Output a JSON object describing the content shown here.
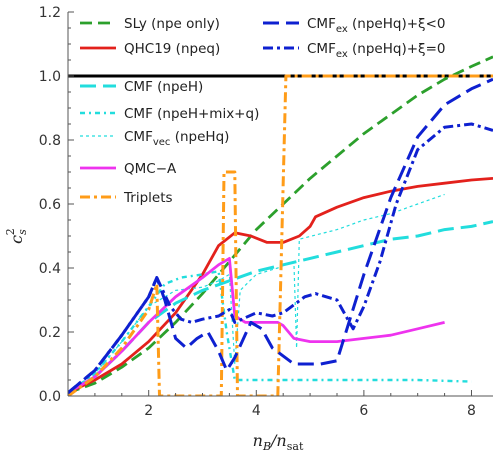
{
  "chart_data": {
    "type": "line",
    "xlabel": "n_B/n_sat",
    "ylabel": "c_s^2",
    "xlim": [
      0.5,
      8.4
    ],
    "ylim": [
      0.0,
      1.2
    ],
    "x_ticks": [
      "2",
      "4",
      "6",
      "8"
    ],
    "y_ticks": [
      "0.0",
      "0.2",
      "0.4",
      "0.6",
      "0.8",
      "1.0",
      "1.2"
    ],
    "reference_line": {
      "y": 1.0,
      "color": "#000000"
    },
    "legend_placement": "top-left, two columns",
    "series": [
      {
        "name": "SLy (npe only)",
        "color": "#2ca02c",
        "dash": "12,6",
        "width": 2.8,
        "points": [
          [
            0.5,
            0.01
          ],
          [
            1,
            0.04
          ],
          [
            1.5,
            0.09
          ],
          [
            2,
            0.15
          ],
          [
            2.5,
            0.23
          ],
          [
            3,
            0.32
          ],
          [
            3.5,
            0.42
          ],
          [
            4,
            0.52
          ],
          [
            4.5,
            0.6
          ],
          [
            5,
            0.68
          ],
          [
            5.5,
            0.75
          ],
          [
            6,
            0.82
          ],
          [
            6.5,
            0.88
          ],
          [
            7,
            0.94
          ],
          [
            7.5,
            0.99
          ],
          [
            8,
            1.03
          ],
          [
            8.4,
            1.06
          ]
        ]
      },
      {
        "name": "QHC19 (npeq)",
        "color": "#e3211c",
        "dash": "",
        "width": 2.8,
        "points": [
          [
            0.5,
            0.01
          ],
          [
            1,
            0.05
          ],
          [
            1.5,
            0.1
          ],
          [
            2,
            0.17
          ],
          [
            2.5,
            0.26
          ],
          [
            3,
            0.38
          ],
          [
            3.3,
            0.47
          ],
          [
            3.6,
            0.51
          ],
          [
            3.9,
            0.5
          ],
          [
            4.2,
            0.48
          ],
          [
            4.5,
            0.48
          ],
          [
            4.8,
            0.5
          ],
          [
            5,
            0.53
          ],
          [
            5.1,
            0.56
          ],
          [
            5.5,
            0.59
          ],
          [
            6,
            0.62
          ],
          [
            6.5,
            0.64
          ],
          [
            7,
            0.655
          ],
          [
            7.5,
            0.665
          ],
          [
            8,
            0.675
          ],
          [
            8.4,
            0.68
          ]
        ]
      },
      {
        "name": "CMF (npeH)",
        "color": "#22dddd",
        "dash": "16,7",
        "width": 3,
        "points": [
          [
            0.5,
            0.01
          ],
          [
            1,
            0.06
          ],
          [
            1.5,
            0.14
          ],
          [
            2,
            0.23
          ],
          [
            2.5,
            0.29
          ],
          [
            3,
            0.33
          ],
          [
            3.5,
            0.36
          ],
          [
            4,
            0.39
          ],
          [
            4.5,
            0.41
          ],
          [
            5,
            0.43
          ],
          [
            5.5,
            0.45
          ],
          [
            6,
            0.47
          ],
          [
            6.5,
            0.49
          ],
          [
            7,
            0.5
          ],
          [
            7.5,
            0.52
          ],
          [
            8,
            0.53
          ],
          [
            8.4,
            0.545
          ]
        ]
      },
      {
        "name": "CMF (npeH+mix+q)",
        "color": "#22dddd",
        "dash": "5,4,2,4",
        "width": 2.4,
        "points": [
          [
            0.5,
            0.01
          ],
          [
            1,
            0.07
          ],
          [
            1.5,
            0.17
          ],
          [
            2,
            0.28
          ],
          [
            2.3,
            0.35
          ],
          [
            2.6,
            0.37
          ],
          [
            3,
            0.38
          ],
          [
            3.3,
            0.39
          ],
          [
            3.45,
            0.2
          ],
          [
            3.6,
            0.05
          ],
          [
            4,
            0.05
          ],
          [
            5,
            0.05
          ],
          [
            6,
            0.05
          ],
          [
            7,
            0.05
          ],
          [
            8,
            0.045
          ]
        ]
      },
      {
        "name": "CMF_vec (npeHq)",
        "color": "#22dddd",
        "dash": "3,3",
        "width": 1.2,
        "points": [
          [
            0.5,
            0.01
          ],
          [
            1,
            0.07
          ],
          [
            1.5,
            0.17
          ],
          [
            2,
            0.28
          ],
          [
            2.5,
            0.33
          ],
          [
            3,
            0.34
          ],
          [
            3.3,
            0.36
          ],
          [
            3.5,
            0.38
          ],
          [
            3.6,
            0.1
          ],
          [
            3.7,
            0.33
          ],
          [
            4,
            0.38
          ],
          [
            4.4,
            0.4
          ],
          [
            4.5,
            0.41
          ],
          [
            4.7,
            0.42
          ],
          [
            4.75,
            0.15
          ],
          [
            4.8,
            0.49
          ],
          [
            5.5,
            0.52
          ],
          [
            6,
            0.55
          ],
          [
            6.5,
            0.57
          ],
          [
            7,
            0.6
          ],
          [
            7.5,
            0.63
          ]
        ]
      },
      {
        "name": "QMC-A",
        "color": "#ee33ee",
        "dash": "",
        "width": 2.8,
        "points": [
          [
            0.5,
            0.01
          ],
          [
            1,
            0.06
          ],
          [
            1.5,
            0.14
          ],
          [
            2,
            0.23
          ],
          [
            2.5,
            0.31
          ],
          [
            3,
            0.37
          ],
          [
            3.3,
            0.41
          ],
          [
            3.5,
            0.43
          ],
          [
            3.6,
            0.25
          ],
          [
            3.8,
            0.23
          ],
          [
            4.2,
            0.23
          ],
          [
            4.4,
            0.23
          ],
          [
            4.5,
            0.22
          ],
          [
            4.7,
            0.18
          ],
          [
            5,
            0.17
          ],
          [
            5.5,
            0.17
          ],
          [
            6,
            0.18
          ],
          [
            6.5,
            0.19
          ],
          [
            7,
            0.21
          ],
          [
            7.5,
            0.23
          ]
        ]
      },
      {
        "name": "Triplets",
        "color": "#ff9c18",
        "dash": "10,4,3,4",
        "width": 3,
        "points": [
          [
            0.5,
            0.0
          ],
          [
            1,
            0.06
          ],
          [
            1.5,
            0.15
          ],
          [
            2,
            0.27
          ],
          [
            2.15,
            0.35
          ],
          [
            2.2,
            0.0
          ],
          [
            3.35,
            0.0
          ],
          [
            3.4,
            0.7
          ],
          [
            3.6,
            0.7
          ],
          [
            3.65,
            0.0
          ],
          [
            4.4,
            0.0
          ],
          [
            4.55,
            1.0
          ],
          [
            8.4,
            1.0
          ]
        ]
      },
      {
        "name": "CMF_ex (npeHq)+ξ<0",
        "color": "#0e20d0",
        "dash": "16,7",
        "width": 3,
        "points": [
          [
            0.5,
            0.01
          ],
          [
            1,
            0.08
          ],
          [
            1.5,
            0.19
          ],
          [
            2,
            0.31
          ],
          [
            2.15,
            0.37
          ],
          [
            2.3,
            0.3
          ],
          [
            2.5,
            0.18
          ],
          [
            2.7,
            0.15
          ],
          [
            2.9,
            0.18
          ],
          [
            3.1,
            0.2
          ],
          [
            3.3,
            0.14
          ],
          [
            3.45,
            0.08
          ],
          [
            3.6,
            0.12
          ],
          [
            3.9,
            0.23
          ],
          [
            4.1,
            0.21
          ],
          [
            4.3,
            0.15
          ],
          [
            4.7,
            0.1
          ],
          [
            5.2,
            0.1
          ],
          [
            5.5,
            0.11
          ],
          [
            6,
            0.38
          ],
          [
            6.5,
            0.62
          ],
          [
            7,
            0.81
          ],
          [
            7.5,
            0.91
          ],
          [
            8,
            0.96
          ],
          [
            8.4,
            0.99
          ]
        ]
      },
      {
        "name": "CMF_ex (npeHq)+ξ=0",
        "color": "#0e20d0",
        "dash": "10,4,3,4",
        "width": 3,
        "points": [
          [
            0.5,
            0.01
          ],
          [
            1,
            0.08
          ],
          [
            1.5,
            0.19
          ],
          [
            2,
            0.31
          ],
          [
            2.15,
            0.37
          ],
          [
            2.4,
            0.28
          ],
          [
            2.6,
            0.24
          ],
          [
            2.8,
            0.23
          ],
          [
            3,
            0.24
          ],
          [
            3.3,
            0.25
          ],
          [
            3.5,
            0.27
          ],
          [
            3.6,
            0.23
          ],
          [
            4,
            0.26
          ],
          [
            4.3,
            0.25
          ],
          [
            4.5,
            0.26
          ],
          [
            4.9,
            0.31
          ],
          [
            5.1,
            0.32
          ],
          [
            5.5,
            0.3
          ],
          [
            5.8,
            0.21
          ],
          [
            6,
            0.28
          ],
          [
            6.3,
            0.42
          ],
          [
            6.6,
            0.6
          ],
          [
            7,
            0.77
          ],
          [
            7.5,
            0.84
          ],
          [
            8,
            0.85
          ],
          [
            8.4,
            0.83
          ]
        ]
      }
    ]
  },
  "legend": {
    "left": [
      {
        "label_main": "SLy (npe only)",
        "label_sub": "",
        "label_tail": ""
      },
      {
        "label_main": "QHC19 (npeq)",
        "label_sub": "",
        "label_tail": ""
      },
      {
        "label_main": "CMF (npeH)",
        "label_sub": "",
        "label_tail": ""
      },
      {
        "label_main": "CMF (npeH+mix+q)",
        "label_sub": "",
        "label_tail": ""
      },
      {
        "label_main": "CMF",
        "label_sub": "vec",
        "label_tail": " (npeHq)"
      },
      {
        "label_main": "QMC−A",
        "label_sub": "",
        "label_tail": ""
      },
      {
        "label_main": "Triplets",
        "label_sub": "",
        "label_tail": ""
      }
    ],
    "right": [
      {
        "label_main": "CMF",
        "label_sub": "ex",
        "label_tail": " (npeHq)+ξ<0"
      },
      {
        "label_main": "CMF",
        "label_sub": "ex",
        "label_tail": " (npeHq)+ξ=0"
      }
    ]
  },
  "axis_title": {
    "x_main": "n",
    "x_sub": "B",
    "x_slash": "/n",
    "x_sub2": "sat",
    "y_main": "c",
    "y_sup": "2",
    "y_sub": "s"
  }
}
